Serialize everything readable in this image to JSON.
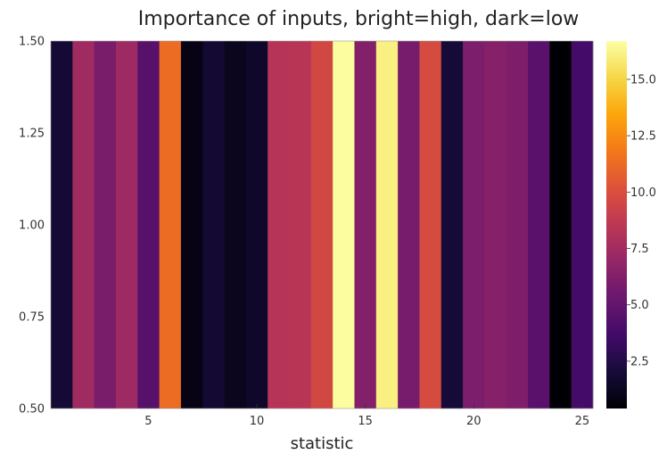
{
  "chart_data": {
    "type": "heatmap",
    "title": "Importance of inputs, bright=high, dark=low",
    "xlabel": "statistic",
    "ylabel": "",
    "xlim": [
      0.5,
      25.5
    ],
    "ylim": [
      0.5,
      1.5
    ],
    "x": [
      1,
      2,
      3,
      4,
      5,
      6,
      7,
      8,
      9,
      10,
      11,
      12,
      13,
      14,
      15,
      16,
      17,
      18,
      19,
      20,
      21,
      22,
      23,
      24,
      25
    ],
    "values": [
      1.9,
      7.4,
      5.9,
      7.3,
      4.5,
      11.3,
      0.9,
      1.8,
      1.2,
      1.6,
      8.3,
      8.4,
      9.6,
      16.6,
      6.3,
      16.1,
      5.8,
      9.8,
      2.0,
      6.0,
      6.4,
      6.1,
      4.6,
      0.4,
      3.8
    ],
    "xticks": [
      "5",
      "10",
      "15",
      "20",
      "25"
    ],
    "yticks": [
      "1.50",
      "1.25",
      "1.00",
      "0.75",
      "0.50"
    ],
    "colorbar": {
      "colormap": "inferno",
      "min": 0.4,
      "max": 16.7,
      "ticks": [
        "15.0",
        "12.5",
        "10.0",
        "7.5",
        "5.0",
        "2.5"
      ]
    },
    "grid": false,
    "legend": "none"
  }
}
